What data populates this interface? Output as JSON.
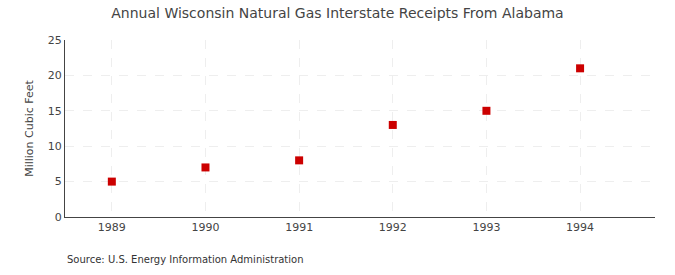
{
  "chart_data": {
    "type": "scatter",
    "title": "Annual Wisconsin Natural Gas Interstate Receipts From Alabama",
    "ylabel": "Million Cubic Feet",
    "source": "Source: U.S. Energy Information Administration",
    "x": [
      1989,
      1990,
      1991,
      1992,
      1993,
      1994
    ],
    "values": [
      5,
      7,
      8,
      13,
      15,
      21
    ],
    "color": "#cc0000",
    "marker": "square",
    "xlim": [
      1988.5,
      1994.8
    ],
    "ylim": [
      0,
      25
    ],
    "xticks": [
      1989,
      1990,
      1991,
      1992,
      1993,
      1994
    ],
    "yticks": [
      0,
      5,
      10,
      15,
      20,
      25
    ],
    "grid": true
  }
}
